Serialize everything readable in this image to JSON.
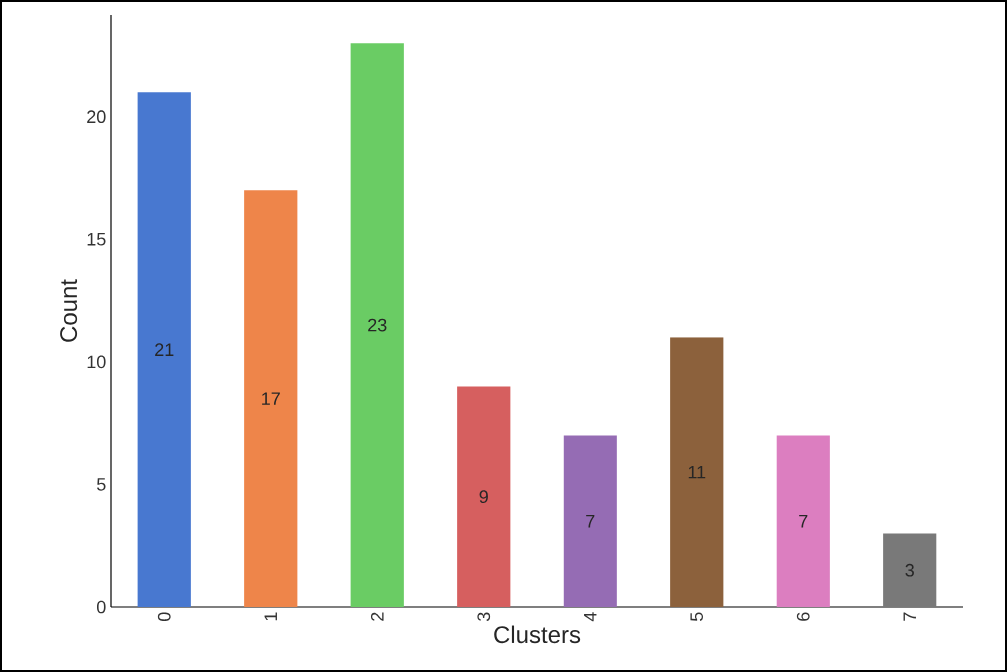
{
  "chart_data": {
    "type": "bar",
    "xlabel": "Clusters",
    "ylabel": "Count",
    "categories": [
      "0",
      "1",
      "2",
      "3",
      "4",
      "5",
      "6",
      "7"
    ],
    "values": [
      21,
      17,
      23,
      9,
      7,
      11,
      7,
      3
    ],
    "colors": [
      "#4878d0",
      "#ee854a",
      "#6acc64",
      "#d65f5f",
      "#956cb4",
      "#8c613c",
      "#dc7ec0",
      "#797979"
    ],
    "ylim": [
      0,
      24.15
    ],
    "yticks": [
      0,
      5,
      10,
      15,
      20
    ],
    "data_labels": true
  }
}
